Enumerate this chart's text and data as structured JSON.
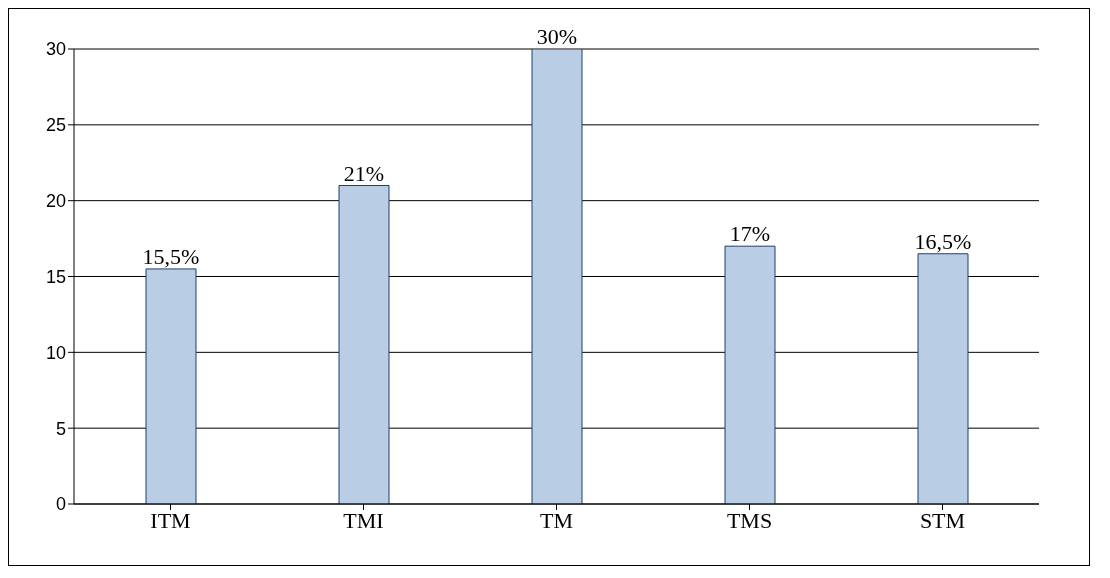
{
  "chart_data": {
    "type": "bar",
    "categories": [
      "ITM",
      "TMI",
      "TM",
      "TMS",
      "STM"
    ],
    "values": [
      15.5,
      21,
      30,
      17,
      16.5
    ],
    "value_labels": [
      "15,5%",
      "21%",
      "30%",
      "17%",
      "16,5%"
    ],
    "color": "#b9cde5",
    "ylim": [
      0,
      30
    ],
    "yticks": [
      0,
      5,
      10,
      15,
      20,
      25,
      30
    ],
    "grid": "y"
  }
}
